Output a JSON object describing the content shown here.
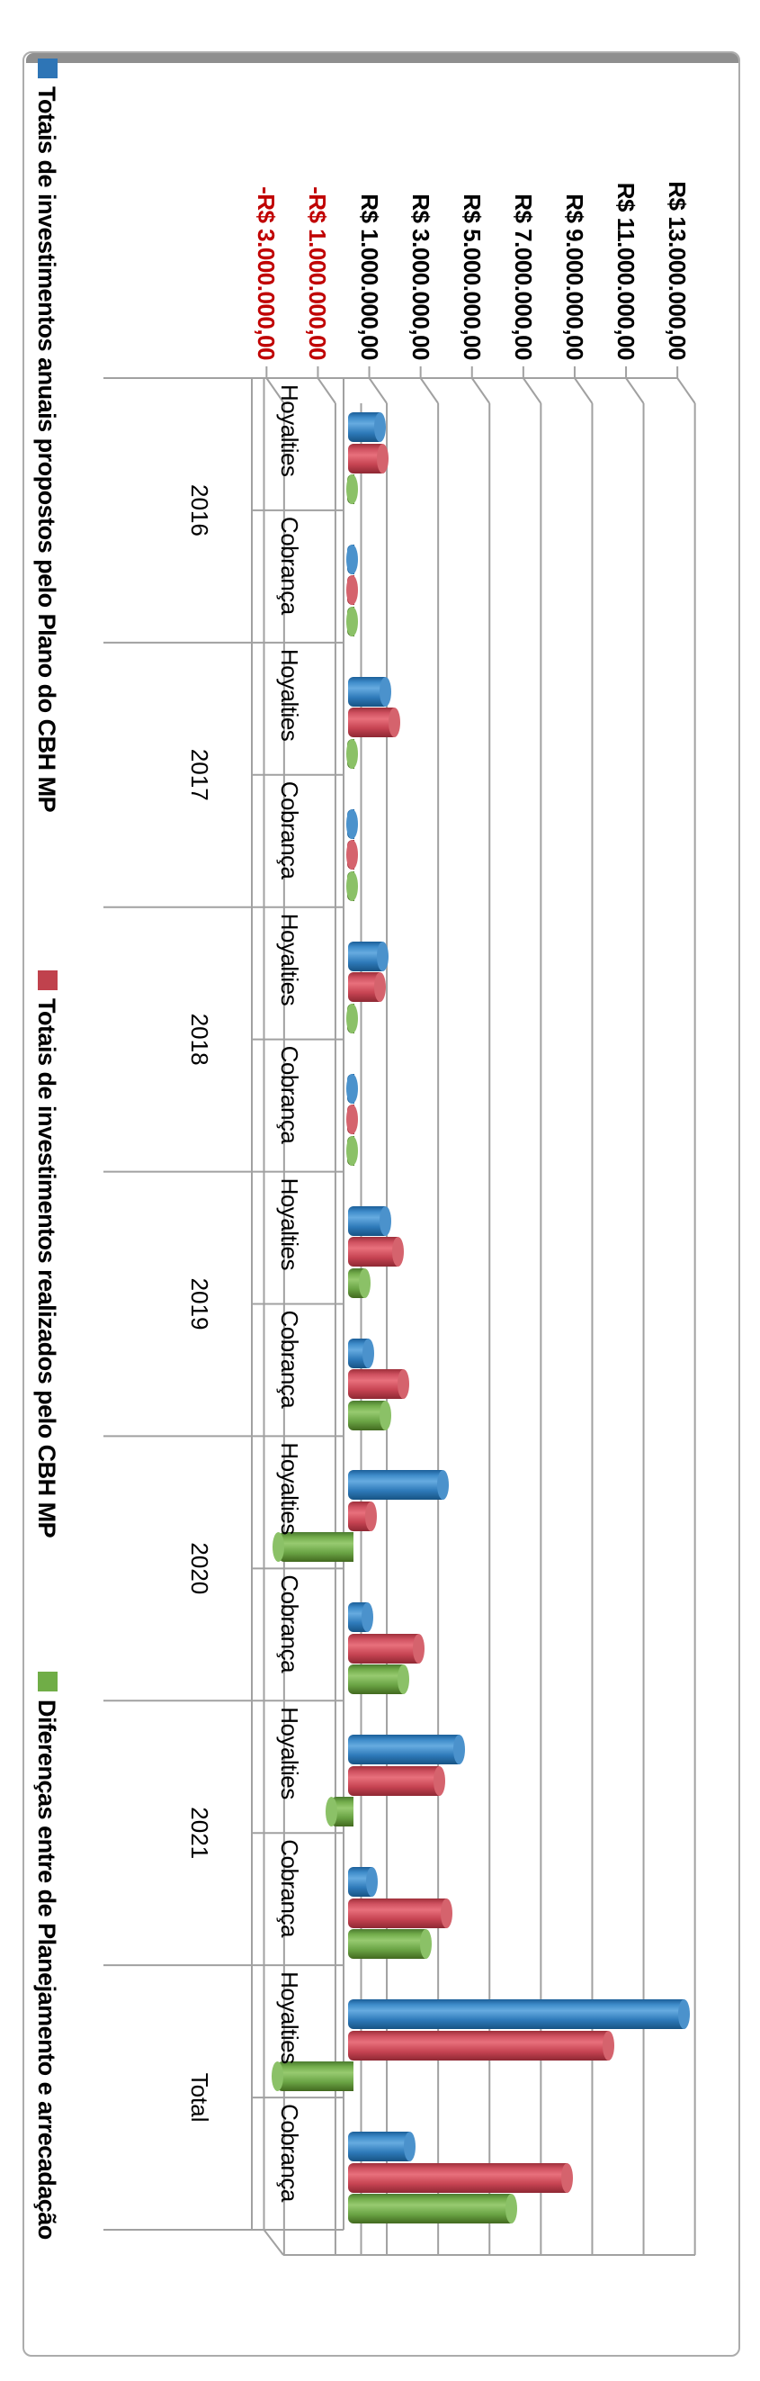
{
  "chart_data": {
    "type": "bar",
    "style": "3d-cylinder, whole chart rotated 90deg clockwise (text reads top-to-bottom)",
    "values_unit": "R$ millions (estimated from bar lengths)",
    "legend_position": "left-edge of portrait (bottom of original chart)",
    "grid": "on",
    "value_axis": {
      "min": -3000000,
      "max": 13000000,
      "tick_step": 2000000,
      "negative_label_color": "#C00000",
      "positive_label_color": "#000000",
      "tick_labels": [
        {
          "text": "-R$ 3.000.000,00",
          "value": -3,
          "negative": true
        },
        {
          "text": "-R$ 1.000.000,00",
          "value": -1,
          "negative": true
        },
        {
          "text": "R$ 1.000.000,00",
          "value": 1,
          "negative": false
        },
        {
          "text": "R$ 3.000.000,00",
          "value": 3,
          "negative": false
        },
        {
          "text": "R$ 5.000.000,00",
          "value": 5,
          "negative": false
        },
        {
          "text": "R$ 7.000.000,00",
          "value": 7,
          "negative": false
        },
        {
          "text": "R$ 9.000.000,00",
          "value": 9,
          "negative": false
        },
        {
          "text": "R$ 11.000.000,00",
          "value": 11,
          "negative": false
        },
        {
          "text": "R$ 13.000.000,00",
          "value": 13,
          "negative": false
        }
      ]
    },
    "categories": [
      {
        "year": "2016",
        "subs": [
          "Hoyalties",
          "Cobrança"
        ]
      },
      {
        "year": "2017",
        "subs": [
          "Hoyalties",
          "Cobrança"
        ]
      },
      {
        "year": "2018",
        "subs": [
          "Hoyalties",
          "Cobrança"
        ]
      },
      {
        "year": "2019",
        "subs": [
          "Hoyalties",
          "Cobrança"
        ]
      },
      {
        "year": "2020",
        "subs": [
          "Hoyalties",
          "Cobrança"
        ]
      },
      {
        "year": "2021",
        "subs": [
          "Hoyalties",
          "Cobrança"
        ]
      },
      {
        "year": "Total",
        "subs": [
          "Hoyalties",
          "Cobrança"
        ]
      }
    ],
    "series": [
      {
        "name": "Totais de investimentos anuais propostos pelo Plano do CBH MP",
        "color": "#2E75B6",
        "values": [
          1.1,
          0.05,
          1.3,
          0.05,
          1.2,
          0.05,
          1.3,
          0.65,
          3.55,
          0.6,
          4.2,
          0.8,
          12.95,
          2.25
        ]
      },
      {
        "name": "Totais de investimentos realizados pelo CBH MP",
        "color": "#C0424D",
        "values": [
          1.2,
          0.05,
          1.65,
          0.05,
          1.1,
          0.05,
          1.8,
          2.0,
          0.75,
          2.6,
          3.4,
          3.7,
          10.0,
          8.4
        ]
      },
      {
        "name": "Diferenças entre de Planejamento e arrecadação",
        "color": "#70AD47",
        "values": [
          0.1,
          0.02,
          0.1,
          0.02,
          -0.1,
          0.02,
          0.5,
          1.3,
          -2.85,
          2.0,
          -0.8,
          2.9,
          -2.9,
          6.2
        ]
      }
    ],
    "gridline_color": "#A1A1A1"
  }
}
